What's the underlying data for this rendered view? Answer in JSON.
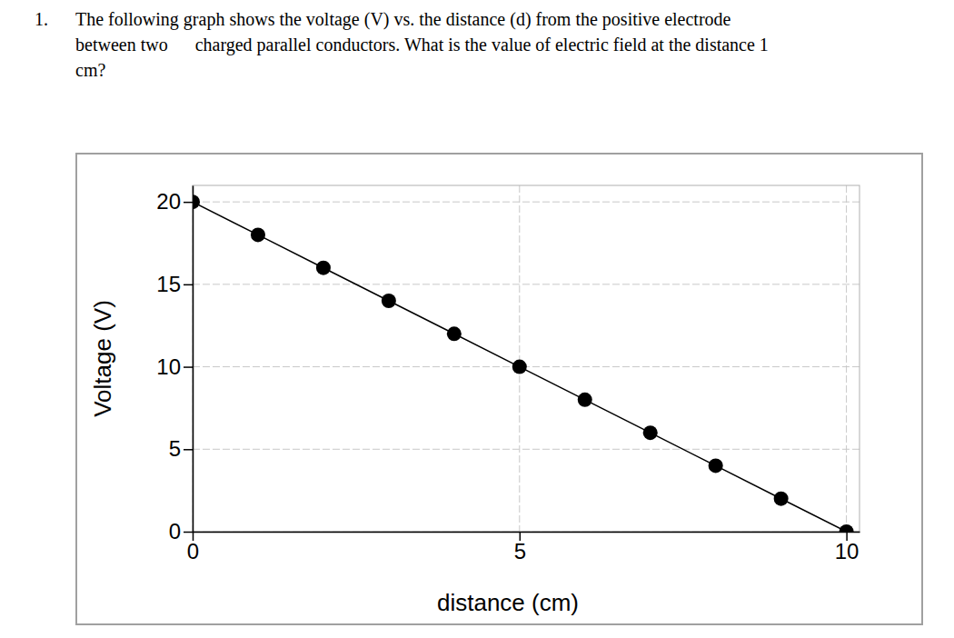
{
  "question": {
    "number": "1.",
    "lines": [
      "The following graph shows the voltage (V) vs. the distance (d) from the positive electrode",
      "between two      charged parallel conductors. What is the value of electric field at the distance 1",
      "cm?"
    ]
  },
  "chart_data": {
    "type": "line",
    "x_label": "distance (cm)",
    "y_label": "Voltage (V)",
    "x": [
      0,
      1,
      2,
      3,
      4,
      5,
      6,
      7,
      8,
      9,
      10
    ],
    "values": [
      20,
      18,
      16,
      14,
      12,
      10,
      8,
      6,
      4,
      2,
      0
    ],
    "color": "#000000",
    "marker": "circle",
    "xlim": [
      0,
      10.2
    ],
    "xticks": [
      0,
      5,
      10
    ],
    "ylim": [
      0,
      21
    ],
    "yticks": [
      0,
      5,
      10,
      15,
      20
    ],
    "grid": true
  }
}
